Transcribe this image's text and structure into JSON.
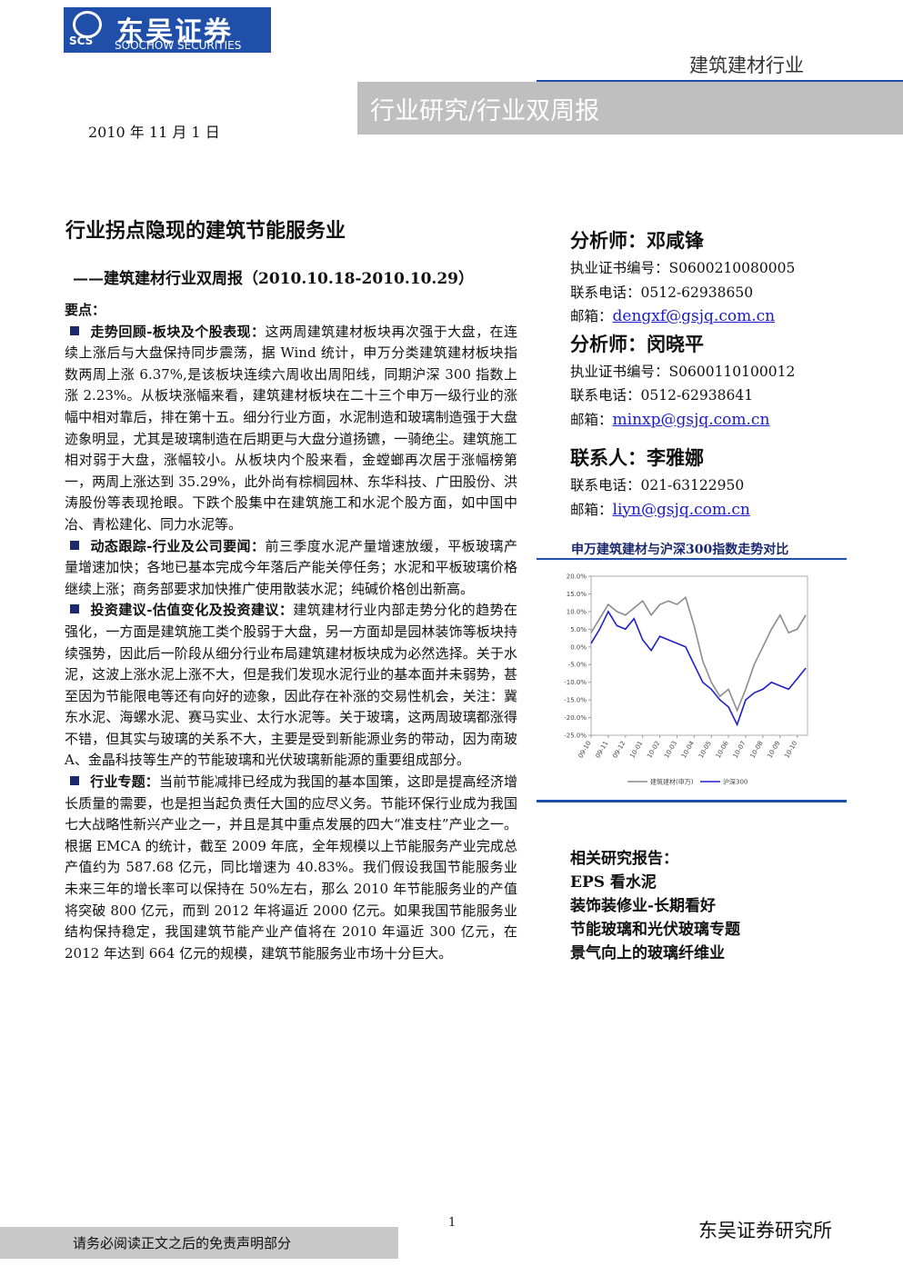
{
  "header": {
    "logo_cn": "东吴证券",
    "logo_abbr": "SCS",
    "logo_en": "SOOCHOW SECURITIES",
    "industry": "建筑建材行业",
    "report_type": "行业研究/行业双周报",
    "date": "2010 年 11 月 1 日"
  },
  "title": "行业拐点隐现的建筑节能服务业",
  "subtitle": "——建筑建材行业双周报（2010.10.18-2010.10.29）",
  "key_points": {
    "heading": "要点：",
    "sections": [
      {
        "heading": "走势回顾-板块及个股表现：",
        "body": "这两周建筑建材板块再次强于大盘，在连续上涨后与大盘保持同步震荡，据 Wind 统计，申万分类建筑建材板块指数两周上涨 6.37%,是该板块连续六周收出周阳线，同期沪深 300 指数上涨 2.23%。从板块涨幅来看，建筑建材板块在二十三个申万一级行业的涨幅中相对靠后，排在第十五。细分行业方面，水泥制造和玻璃制造强于大盘迹象明显，尤其是玻璃制造在后期更与大盘分道扬镳，一骑绝尘。建筑施工相对弱于大盘，涨幅较小。从板块内个股来看，金螳螂再次居于涨幅榜第一，两周上涨达到 35.29%，此外尚有棕榈园林、东华科技、广田股份、洪涛股份等表现抢眼。下跌个股集中在建筑施工和水泥个股方面，如中国中冶、青松建化、同力水泥等。"
      },
      {
        "heading": "动态跟踪-行业及公司要闻：",
        "body": "前三季度水泥产量增速放缓，平板玻璃产量增速加快；各地已基本完成今年落后产能关停任务；水泥和平板玻璃价格继续上涨；商务部要求加快推广使用散装水泥；纯碱价格创出新高。"
      },
      {
        "heading": "投资建议-估值变化及投资建议：",
        "body": "建筑建材行业内部走势分化的趋势在强化，一方面是建筑施工类个股弱于大盘，另一方面却是园林装饰等板块持续强势，因此后一阶段从细分行业布局建筑建材板块成为必然选择。关于水泥，这波上涨水泥上涨不大，但是我们发现水泥行业的基本面并未弱势，甚至因为节能限电等还有向好的迹象，因此存在补涨的交易性机会，关注：冀东水泥、海螺水泥、赛马实业、太行水泥等。关于玻璃，这两周玻璃都涨得不错，但其实与玻璃的关系不大，主要是受到新能源业务的带动，因为南玻 A、金晶科技等生产的节能玻璃和光伏玻璃新能源的重要组成部分。"
      },
      {
        "heading": "行业专题：",
        "body": "当前节能减排已经成为我国的基本国策，这即是提高经济增长质量的需要，也是担当起负责任大国的应尽义务。节能环保行业成为我国七大战略性新兴产业之一，并且是其中重点发展的四大“准支柱”产业之一。根据 EMCA 的统计，截至 2009 年底，全年规模以上节能服务产业完成总产值约为 587.68 亿元，同比增速为 40.83%。我们假设我国节能服务业未来三年的增长率可以保持在 50%左右，那么 2010 年节能服务业的产值将突破 800 亿元，而到 2012 年将逼近 2000 亿元。如果我国节能服务业结构保持稳定，我国建筑节能产业产值将在 2010 年逼近 300 亿元，在 2012 年达到 664 亿元的规模，建筑节能服务业市场十分巨大。"
      }
    ]
  },
  "contacts": [
    {
      "title": "分析师：邓咸锋",
      "cert": "执业证书编号：S0600210080005",
      "phone": "联系电话：0512-62938650",
      "email_label": "邮箱：",
      "email": "dengxf@gsjq.com.cn"
    },
    {
      "title": "分析师：闵晓平",
      "cert": "执业证书编号：S0600110100012",
      "phone": "联系电话：0512-62938641",
      "email_label": "邮箱：",
      "email": "minxp@gsjq.com.cn"
    },
    {
      "title": "联系人：李雅娜",
      "phone": "联系电话：021-63122950",
      "email_label": "邮箱：",
      "email": "liyn@gsjq.com.cn"
    }
  ],
  "chart_data": {
    "type": "line",
    "title": "申万建筑建材与沪深300指数走势对比",
    "x": [
      0,
      0.5,
      1,
      1.5,
      2,
      2.5,
      3,
      3.5,
      4,
      4.5,
      5,
      5.5,
      6,
      6.5,
      7,
      7.5,
      8,
      8.5,
      9,
      9.5,
      10,
      10.5,
      11,
      11.5,
      12,
      12.5
    ],
    "xlim": [
      0,
      12.6
    ],
    "xticks": [
      {
        "value": 0,
        "label": "09-10"
      },
      {
        "value": 1,
        "label": "09-11"
      },
      {
        "value": 2,
        "label": "09-12"
      },
      {
        "value": 3,
        "label": "10-01"
      },
      {
        "value": 4,
        "label": "10-02"
      },
      {
        "value": 5,
        "label": "10-03"
      },
      {
        "value": 6,
        "label": "10-04"
      },
      {
        "value": 7,
        "label": "10-05"
      },
      {
        "value": 8,
        "label": "10-06"
      },
      {
        "value": 9,
        "label": "10-07"
      },
      {
        "value": 10,
        "label": "10-08"
      },
      {
        "value": 11,
        "label": "10-09"
      },
      {
        "value": 12,
        "label": "10-10"
      }
    ],
    "ylim": [
      -25,
      20
    ],
    "yticks": [
      {
        "value": 20,
        "label": "20.0%"
      },
      {
        "value": 15,
        "label": "15.0%"
      },
      {
        "value": 10,
        "label": "10.0%"
      },
      {
        "value": 5,
        "label": "5.0%"
      },
      {
        "value": 0,
        "label": "0.0%"
      },
      {
        "value": -5,
        "label": "-5.0%"
      },
      {
        "value": -10,
        "label": "-10.0%"
      },
      {
        "value": -15,
        "label": "-15.0%"
      },
      {
        "value": -20,
        "label": "-20.0%"
      },
      {
        "value": -25,
        "label": "-25.0%"
      }
    ],
    "series": [
      {
        "name": "建筑建材(申万)",
        "color": "#8c8c8c",
        "values": [
          4,
          8,
          12,
          10,
          9,
          11,
          13,
          9,
          12,
          13,
          12,
          14,
          6,
          -4,
          -10,
          -14,
          -12,
          -18,
          -12,
          -5,
          0,
          5,
          9,
          4,
          5,
          9
        ]
      },
      {
        "name": "沪深300",
        "color": "#1f1fc8",
        "values": [
          1,
          5,
          10,
          6,
          5,
          8,
          2,
          -1,
          3,
          2,
          1,
          0,
          -5,
          -10,
          -12,
          -15,
          -17,
          -22,
          -15,
          -13,
          -12,
          -10,
          -11,
          -12,
          -9,
          -6
        ]
      }
    ]
  },
  "related": {
    "heading": "相关研究报告：",
    "items": [
      "EPS 看水泥",
      "装饰装修业-长期看好",
      "节能玻璃和光伏玻璃专题",
      "景气向上的玻璃纤维业"
    ]
  },
  "footer": {
    "disclaimer": "请务必阅读正文之后的免责声明部分",
    "page": "1",
    "firm": "东吴证券研究所"
  }
}
